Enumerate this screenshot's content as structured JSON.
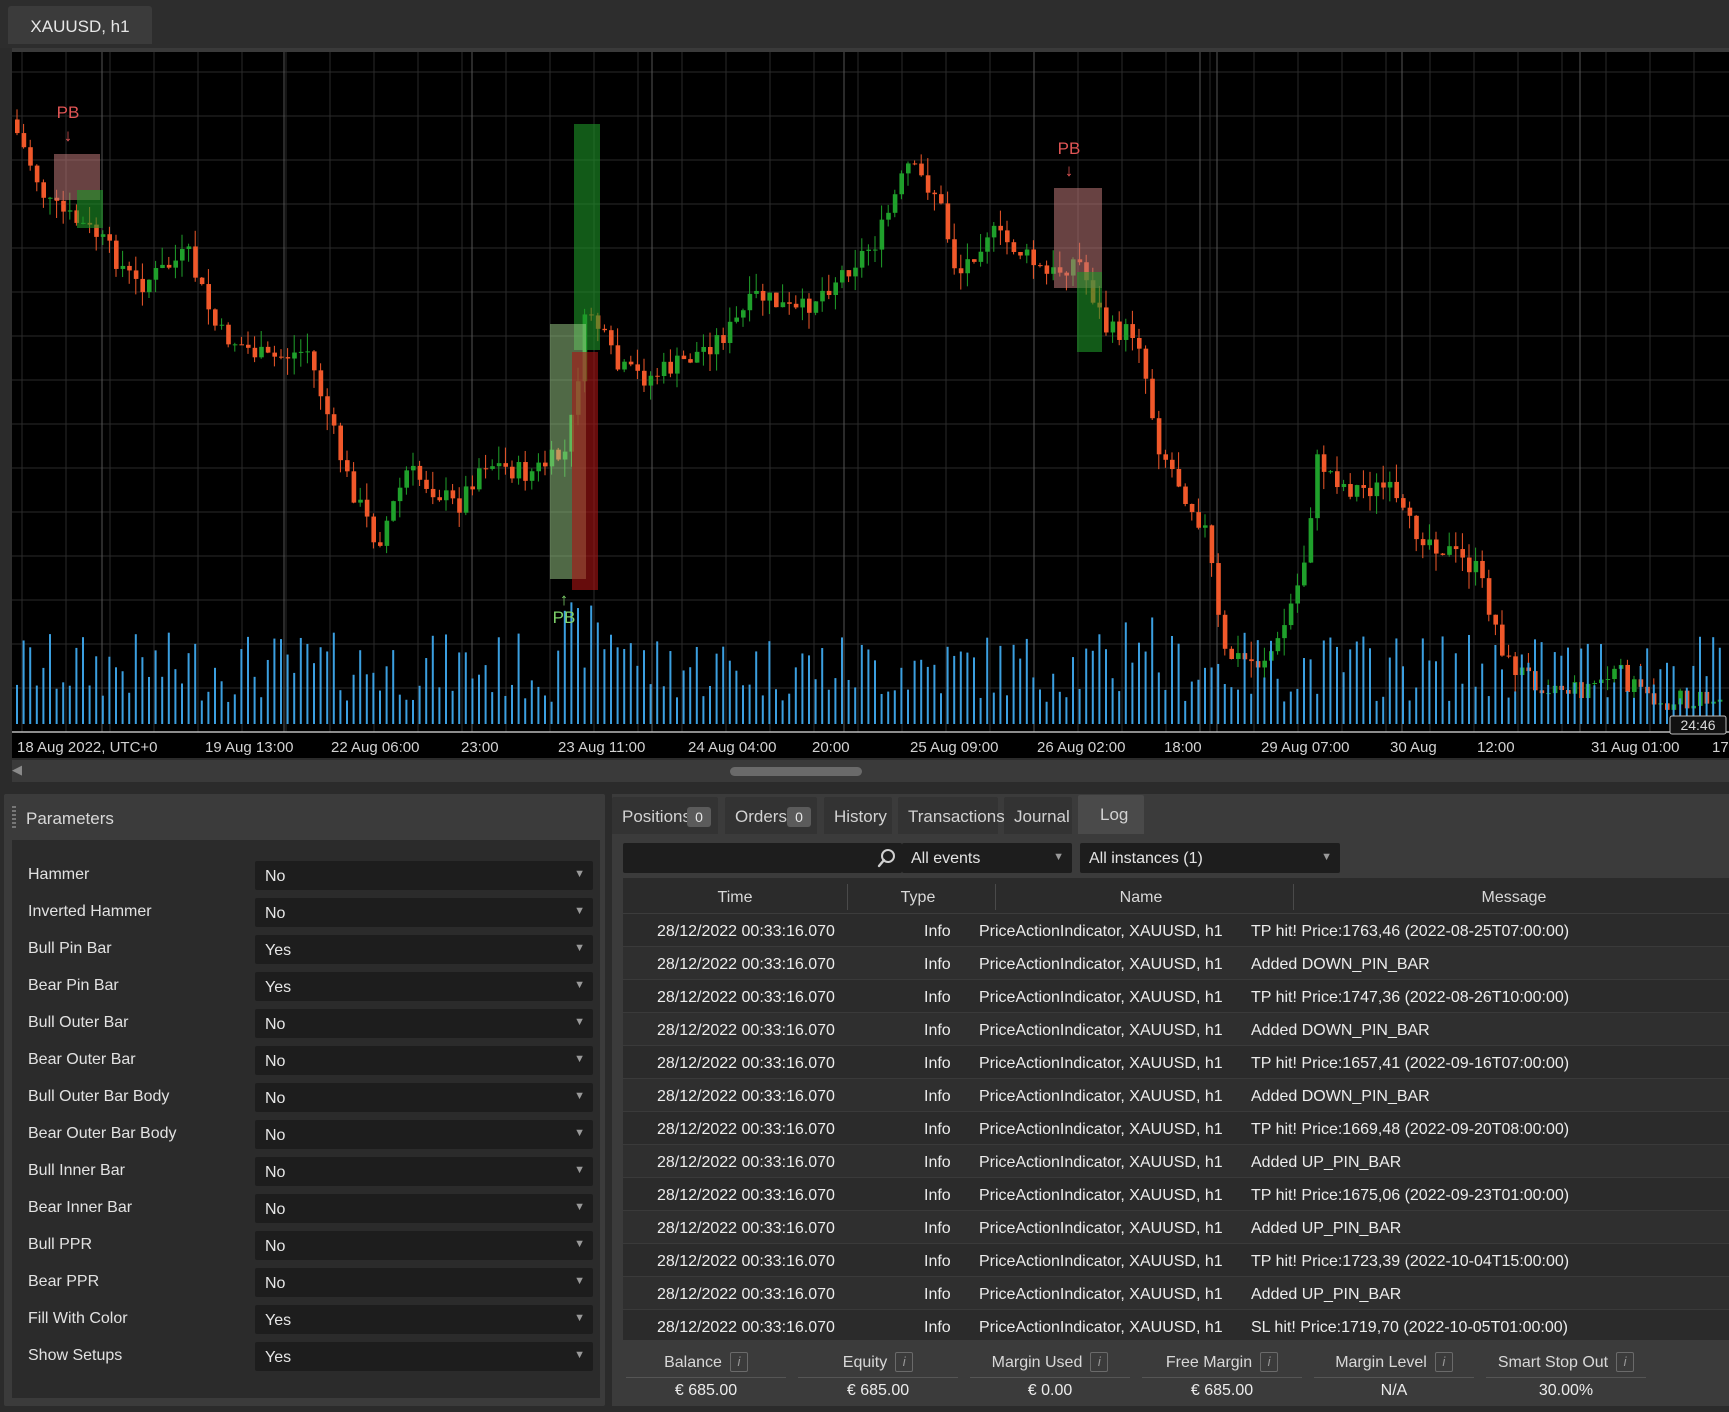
{
  "chart_tab": {
    "title": "XAUUSD, h1"
  },
  "chart": {
    "pb_label": "PB",
    "current_time_label": "24:46",
    "x_labels": [
      "18 Aug 2022, UTC+0",
      "19 Aug 13:00",
      "22 Aug 06:00",
      "23:00",
      "23 Aug 11:00",
      "24 Aug 04:00",
      "20:00",
      "25 Aug 09:00",
      "26 Aug 02:00",
      "18:00",
      "29 Aug 07:00",
      "30 Aug",
      "12:00",
      "31 Aug 01:00",
      "17:"
    ],
    "colors": {
      "bull": "#1fa02b",
      "bear": "#f0582a",
      "volume": "#3b9fe0",
      "grid": "#2a2a2a",
      "background": "#000000"
    }
  },
  "params": {
    "title": "Parameters",
    "items": [
      {
        "label": "Hammer",
        "value": "No"
      },
      {
        "label": "Inverted Hammer",
        "value": "No"
      },
      {
        "label": "Bull Pin Bar",
        "value": "Yes"
      },
      {
        "label": "Bear Pin Bar",
        "value": "Yes"
      },
      {
        "label": "Bull Outer Bar",
        "value": "No"
      },
      {
        "label": "Bear Outer Bar",
        "value": "No"
      },
      {
        "label": "Bull Outer Bar Body",
        "value": "No"
      },
      {
        "label": "Bear Outer Bar Body",
        "value": "No"
      },
      {
        "label": "Bull Inner Bar",
        "value": "No"
      },
      {
        "label": "Bear Inner Bar",
        "value": "No"
      },
      {
        "label": "Bull PPR",
        "value": "No"
      },
      {
        "label": "Bear PPR",
        "value": "No"
      },
      {
        "label": "Fill With Color",
        "value": "Yes"
      },
      {
        "label": "Show Setups",
        "value": "Yes"
      }
    ]
  },
  "log_tabs": [
    {
      "label": "Positions",
      "badge": "0"
    },
    {
      "label": "Orders",
      "badge": "0"
    },
    {
      "label": "History"
    },
    {
      "label": "Transactions"
    },
    {
      "label": "Journal"
    },
    {
      "label": "Log"
    }
  ],
  "filters": {
    "events": "All events",
    "instances": "All instances (1)"
  },
  "log_columns": [
    "Time",
    "Type",
    "Name",
    "Message"
  ],
  "log_rows": [
    {
      "time": "28/12/2022 00:33:16.070",
      "type": "Info",
      "name": "PriceActionIndicator, XAUUSD, h1",
      "message": "TP hit! Price:1763,46 (2022-08-25T07:00:00)"
    },
    {
      "time": "28/12/2022 00:33:16.070",
      "type": "Info",
      "name": "PriceActionIndicator, XAUUSD, h1",
      "message": "Added DOWN_PIN_BAR"
    },
    {
      "time": "28/12/2022 00:33:16.070",
      "type": "Info",
      "name": "PriceActionIndicator, XAUUSD, h1",
      "message": "TP hit! Price:1747,36 (2022-08-26T10:00:00)"
    },
    {
      "time": "28/12/2022 00:33:16.070",
      "type": "Info",
      "name": "PriceActionIndicator, XAUUSD, h1",
      "message": "Added DOWN_PIN_BAR"
    },
    {
      "time": "28/12/2022 00:33:16.070",
      "type": "Info",
      "name": "PriceActionIndicator, XAUUSD, h1",
      "message": "TP hit! Price:1657,41 (2022-09-16T07:00:00)"
    },
    {
      "time": "28/12/2022 00:33:16.070",
      "type": "Info",
      "name": "PriceActionIndicator, XAUUSD, h1",
      "message": "Added DOWN_PIN_BAR"
    },
    {
      "time": "28/12/2022 00:33:16.070",
      "type": "Info",
      "name": "PriceActionIndicator, XAUUSD, h1",
      "message": "TP hit! Price:1669,48 (2022-09-20T08:00:00)"
    },
    {
      "time": "28/12/2022 00:33:16.070",
      "type": "Info",
      "name": "PriceActionIndicator, XAUUSD, h1",
      "message": "Added UP_PIN_BAR"
    },
    {
      "time": "28/12/2022 00:33:16.070",
      "type": "Info",
      "name": "PriceActionIndicator, XAUUSD, h1",
      "message": "TP hit! Price:1675,06 (2022-09-23T01:00:00)"
    },
    {
      "time": "28/12/2022 00:33:16.070",
      "type": "Info",
      "name": "PriceActionIndicator, XAUUSD, h1",
      "message": "Added UP_PIN_BAR"
    },
    {
      "time": "28/12/2022 00:33:16.070",
      "type": "Info",
      "name": "PriceActionIndicator, XAUUSD, h1",
      "message": "TP hit! Price:1723,39 (2022-10-04T15:00:00)"
    },
    {
      "time": "28/12/2022 00:33:16.070",
      "type": "Info",
      "name": "PriceActionIndicator, XAUUSD, h1",
      "message": "Added UP_PIN_BAR"
    },
    {
      "time": "28/12/2022 00:33:16.070",
      "type": "Info",
      "name": "PriceActionIndicator, XAUUSD, h1",
      "message": "SL hit! Price:1719,70 (2022-10-05T01:00:00)"
    }
  ],
  "account": [
    {
      "label": "Balance",
      "value": "€ 685.00"
    },
    {
      "label": "Equity",
      "value": "€ 685.00"
    },
    {
      "label": "Margin Used",
      "value": "€ 0.00"
    },
    {
      "label": "Free Margin",
      "value": "€ 685.00"
    },
    {
      "label": "Margin Level",
      "value": "N/A"
    },
    {
      "label": "Smart Stop Out",
      "value": "30.00%"
    }
  ]
}
